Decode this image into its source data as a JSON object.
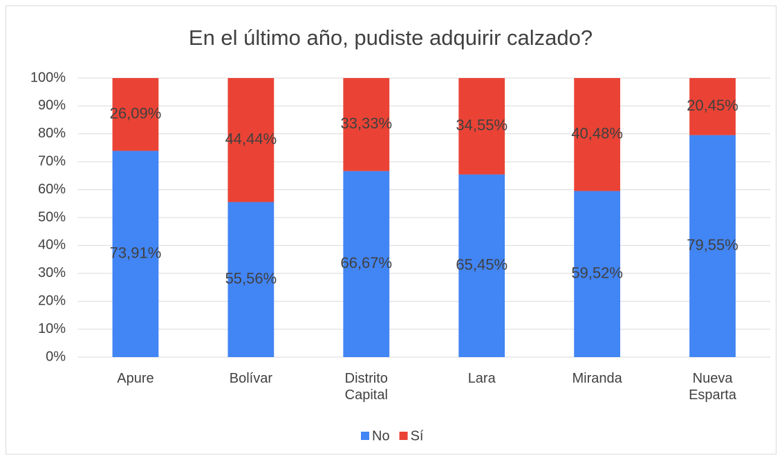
{
  "chart_data": {
    "type": "stacked_bar",
    "title": "En el último año, pudiste adquirir calzado?",
    "categories": [
      "Apure",
      "Bolívar",
      "Distrito Capital",
      "Lara",
      "Miranda",
      "Nueva Esparta"
    ],
    "series": [
      {
        "name": "No",
        "color": "#4285f4",
        "values": [
          73.91,
          55.56,
          66.67,
          65.45,
          59.52,
          79.55
        ],
        "value_labels": [
          "73,91%",
          "55,56%",
          "66,67%",
          "65,45%",
          "59,52%",
          "79,55%"
        ]
      },
      {
        "name": "Sí",
        "color": "#ea4335",
        "values": [
          26.09,
          44.44,
          33.33,
          34.55,
          40.48,
          20.45
        ],
        "value_labels": [
          "26,09%",
          "44,44%",
          "33,33%",
          "34,55%",
          "40,48%",
          "20,45%"
        ]
      }
    ],
    "ylim": [
      0,
      100
    ],
    "yticks": [
      {
        "value": 0,
        "label": "0%"
      },
      {
        "value": 10,
        "label": "10%"
      },
      {
        "value": 20,
        "label": "20%"
      },
      {
        "value": 30,
        "label": "30%"
      },
      {
        "value": 40,
        "label": "40%"
      },
      {
        "value": 50,
        "label": "50%"
      },
      {
        "value": 60,
        "label": "60%"
      },
      {
        "value": 70,
        "label": "70%"
      },
      {
        "value": 80,
        "label": "80%"
      },
      {
        "value": 90,
        "label": "90%"
      },
      {
        "value": 100,
        "label": "100%"
      }
    ],
    "grid": true,
    "legend": "bottom"
  }
}
